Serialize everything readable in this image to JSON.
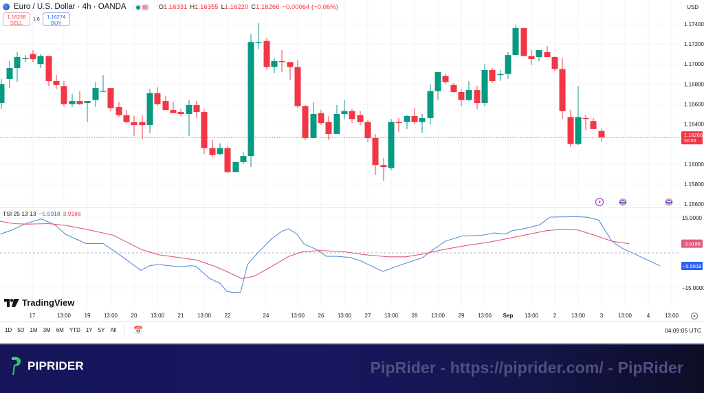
{
  "header": {
    "symbol_title": "Euro / U.S. Dollar · 4h · OANDA",
    "ohlc": {
      "open_label": "O",
      "open": "1.16331",
      "high_label": "H",
      "high": "1.16355",
      "low_label": "L",
      "low": "1.16220",
      "close_label": "C",
      "close": "1.16266",
      "change": "−0.00064 (−0.06%)"
    },
    "sell": {
      "price": "1.16258",
      "label": "SELL"
    },
    "spread": "1.6",
    "buy": {
      "price": "1.16274",
      "label": "BUY"
    },
    "currency": "USD"
  },
  "price_axis": {
    "labels": [
      "1.17400",
      "1.17200",
      "1.17000",
      "1.16800",
      "1.16600",
      "1.16400",
      "1.16000",
      "1.15800",
      "1.15600"
    ],
    "current_price": "1.16266",
    "countdown": "50:55",
    "current_color": "#f23645"
  },
  "tsi": {
    "name": "TSI 25 13 13",
    "tsi_value": "−5.5918",
    "signal_value": "3.9186",
    "axis_labels": [
      "15.0000",
      "−15.0000"
    ],
    "tsi_color": "#5b8fd6",
    "signal_color": "#e05a7a"
  },
  "time_axis": {
    "labels": [
      "17",
      "13:00",
      "19",
      "13:00",
      "20",
      "13:00",
      "21",
      "13:00",
      "22",
      "24",
      "13:00",
      "26",
      "13:00",
      "27",
      "13:00",
      "28",
      "13:00",
      "29",
      "13:00",
      "Sep",
      "13:00",
      "2",
      "13:00",
      "3",
      "13:00",
      "4",
      "13:00"
    ]
  },
  "range_bar": {
    "items": [
      "1D",
      "5D",
      "1M",
      "3M",
      "6M",
      "YTD",
      "1Y",
      "5Y",
      "All"
    ],
    "time": "04:09:05 UTC"
  },
  "branding": {
    "tradingview": "TradingView",
    "footer_brand": "PIPRIDER",
    "footer_watermark": "PipRider - https://piprider.com/ - PipRider"
  },
  "colors": {
    "up": "#089981",
    "down": "#f23645",
    "grid": "#f0f3fa"
  },
  "chart_data": [
    {
      "type": "candlestick",
      "title": "Euro / U.S. Dollar · 4h · OANDA",
      "xlabel": "",
      "ylabel": "USD",
      "ylim": [
        1.1556,
        1.1743
      ],
      "grid": true,
      "x_ticks": [
        "17",
        "13:00",
        "19",
        "13:00",
        "20",
        "13:00",
        "21",
        "13:00",
        "22",
        "24",
        "13:00",
        "26",
        "13:00",
        "27",
        "13:00",
        "28",
        "13:00",
        "29",
        "13:00",
        "Sep",
        "13:00",
        "2",
        "13:00",
        "3",
        "13:00",
        "4",
        "13:00"
      ],
      "y_ticks": [
        1.174,
        1.172,
        1.17,
        1.168,
        1.166,
        1.164,
        1.16,
        1.158,
        1.156
      ],
      "candles": [
        {
          "x": 2,
          "o": 1.1661,
          "h": 1.1685,
          "l": 1.1655,
          "c": 1.168
        },
        {
          "x": 14,
          "o": 1.1685,
          "h": 1.1703,
          "l": 1.1676,
          "c": 1.1696
        },
        {
          "x": 25,
          "o": 1.1696,
          "h": 1.1712,
          "l": 1.1682,
          "c": 1.1707
        },
        {
          "x": 37,
          "o": 1.1705,
          "h": 1.1709,
          "l": 1.1702,
          "c": 1.1706
        },
        {
          "x": 48,
          "o": 1.171,
          "h": 1.1714,
          "l": 1.1702,
          "c": 1.1705
        },
        {
          "x": 59,
          "o": 1.17,
          "h": 1.171,
          "l": 1.1696,
          "c": 1.1708
        },
        {
          "x": 71,
          "o": 1.1708,
          "h": 1.1708,
          "l": 1.1678,
          "c": 1.1683
        },
        {
          "x": 82,
          "o": 1.1683,
          "h": 1.1689,
          "l": 1.1675,
          "c": 1.1679
        },
        {
          "x": 93,
          "o": 1.1678,
          "h": 1.1683,
          "l": 1.1658,
          "c": 1.166
        },
        {
          "x": 105,
          "o": 1.166,
          "h": 1.167,
          "l": 1.1657,
          "c": 1.1663
        },
        {
          "x": 116,
          "o": 1.1663,
          "h": 1.1673,
          "l": 1.1659,
          "c": 1.166
        },
        {
          "x": 127,
          "o": 1.1661,
          "h": 1.1661,
          "l": 1.1642,
          "c": 1.1663
        },
        {
          "x": 139,
          "o": 1.1664,
          "h": 1.1682,
          "l": 1.1657,
          "c": 1.1676
        },
        {
          "x": 150,
          "o": 1.1673,
          "h": 1.1689,
          "l": 1.1673,
          "c": 1.1673
        },
        {
          "x": 161,
          "o": 1.1676,
          "h": 1.1676,
          "l": 1.1653,
          "c": 1.1656
        },
        {
          "x": 173,
          "o": 1.1657,
          "h": 1.1662,
          "l": 1.1647,
          "c": 1.1649
        },
        {
          "x": 184,
          "o": 1.1649,
          "h": 1.1654,
          "l": 1.1641,
          "c": 1.1642
        },
        {
          "x": 195,
          "o": 1.1642,
          "h": 1.1648,
          "l": 1.1628,
          "c": 1.1639
        },
        {
          "x": 207,
          "o": 1.1642,
          "h": 1.1649,
          "l": 1.1625,
          "c": 1.1639
        },
        {
          "x": 218,
          "o": 1.1639,
          "h": 1.1675,
          "l": 1.1631,
          "c": 1.1671
        },
        {
          "x": 229,
          "o": 1.1671,
          "h": 1.1677,
          "l": 1.1658,
          "c": 1.166
        },
        {
          "x": 241,
          "o": 1.1663,
          "h": 1.1668,
          "l": 1.1654,
          "c": 1.1654
        },
        {
          "x": 252,
          "o": 1.1654,
          "h": 1.1662,
          "l": 1.1651,
          "c": 1.1651
        },
        {
          "x": 263,
          "o": 1.1652,
          "h": 1.1655,
          "l": 1.1648,
          "c": 1.165
        },
        {
          "x": 275,
          "o": 1.165,
          "h": 1.1664,
          "l": 1.1628,
          "c": 1.1659
        },
        {
          "x": 286,
          "o": 1.1659,
          "h": 1.1663,
          "l": 1.1646,
          "c": 1.1652
        },
        {
          "x": 297,
          "o": 1.1652,
          "h": 1.1655,
          "l": 1.161,
          "c": 1.1616
        },
        {
          "x": 309,
          "o": 1.1616,
          "h": 1.1624,
          "l": 1.1607,
          "c": 1.1609
        },
        {
          "x": 320,
          "o": 1.161,
          "h": 1.1621,
          "l": 1.1609,
          "c": 1.1616
        },
        {
          "x": 331,
          "o": 1.1616,
          "h": 1.1618,
          "l": 1.1591,
          "c": 1.1592
        },
        {
          "x": 343,
          "o": 1.1592,
          "h": 1.1602,
          "l": 1.1592,
          "c": 1.1602
        },
        {
          "x": 354,
          "o": 1.1602,
          "h": 1.1612,
          "l": 1.16,
          "c": 1.1608
        },
        {
          "x": 365,
          "o": 1.1608,
          "h": 1.173,
          "l": 1.1597,
          "c": 1.1722
        },
        {
          "x": 376,
          "o": 1.1722,
          "h": 1.1741,
          "l": 1.1715,
          "c": 1.1722
        },
        {
          "x": 388,
          "o": 1.1723,
          "h": 1.1726,
          "l": 1.1695,
          "c": 1.1697
        },
        {
          "x": 399,
          "o": 1.1697,
          "h": 1.1706,
          "l": 1.1691,
          "c": 1.1703
        },
        {
          "x": 410,
          "o": 1.1703,
          "h": 1.1714,
          "l": 1.1692,
          "c": 1.1702
        },
        {
          "x": 422,
          "o": 1.1702,
          "h": 1.1702,
          "l": 1.1684,
          "c": 1.1697
        },
        {
          "x": 433,
          "o": 1.1697,
          "h": 1.1704,
          "l": 1.1656,
          "c": 1.1658
        },
        {
          "x": 444,
          "o": 1.1658,
          "h": 1.1659,
          "l": 1.1624,
          "c": 1.1626
        },
        {
          "x": 456,
          "o": 1.1626,
          "h": 1.1662,
          "l": 1.1627,
          "c": 1.165
        },
        {
          "x": 467,
          "o": 1.1651,
          "h": 1.1654,
          "l": 1.1639,
          "c": 1.1641
        },
        {
          "x": 478,
          "o": 1.1642,
          "h": 1.1648,
          "l": 1.1624,
          "c": 1.163
        },
        {
          "x": 490,
          "o": 1.163,
          "h": 1.1659,
          "l": 1.163,
          "c": 1.165
        },
        {
          "x": 501,
          "o": 1.165,
          "h": 1.1664,
          "l": 1.1645,
          "c": 1.1653
        },
        {
          "x": 512,
          "o": 1.1653,
          "h": 1.1655,
          "l": 1.1641,
          "c": 1.1645
        },
        {
          "x": 524,
          "o": 1.1649,
          "h": 1.1653,
          "l": 1.1639,
          "c": 1.1642
        },
        {
          "x": 535,
          "o": 1.1642,
          "h": 1.1644,
          "l": 1.1622,
          "c": 1.1626
        },
        {
          "x": 546,
          "o": 1.1626,
          "h": 1.163,
          "l": 1.1589,
          "c": 1.1599
        },
        {
          "x": 558,
          "o": 1.1599,
          "h": 1.1606,
          "l": 1.1583,
          "c": 1.1597
        },
        {
          "x": 569,
          "o": 1.1596,
          "h": 1.1645,
          "l": 1.1594,
          "c": 1.1642
        },
        {
          "x": 580,
          "o": 1.1642,
          "h": 1.1646,
          "l": 1.1632,
          "c": 1.1641
        },
        {
          "x": 592,
          "o": 1.1642,
          "h": 1.1649,
          "l": 1.1635,
          "c": 1.1648
        },
        {
          "x": 603,
          "o": 1.1648,
          "h": 1.1656,
          "l": 1.164,
          "c": 1.1642
        },
        {
          "x": 614,
          "o": 1.1642,
          "h": 1.165,
          "l": 1.1631,
          "c": 1.1646
        },
        {
          "x": 626,
          "o": 1.1646,
          "h": 1.168,
          "l": 1.164,
          "c": 1.1673
        },
        {
          "x": 637,
          "o": 1.1673,
          "h": 1.1688,
          "l": 1.1664,
          "c": 1.1692
        },
        {
          "x": 648,
          "o": 1.1688,
          "h": 1.169,
          "l": 1.168,
          "c": 1.1682
        },
        {
          "x": 660,
          "o": 1.1679,
          "h": 1.1681,
          "l": 1.1671,
          "c": 1.1672
        },
        {
          "x": 671,
          "o": 1.1672,
          "h": 1.1675,
          "l": 1.1658,
          "c": 1.1664
        },
        {
          "x": 682,
          "o": 1.1664,
          "h": 1.1683,
          "l": 1.1663,
          "c": 1.1674
        },
        {
          "x": 694,
          "o": 1.1674,
          "h": 1.1678,
          "l": 1.1655,
          "c": 1.1661
        },
        {
          "x": 705,
          "o": 1.1661,
          "h": 1.17,
          "l": 1.1658,
          "c": 1.1694
        },
        {
          "x": 716,
          "o": 1.1694,
          "h": 1.1696,
          "l": 1.1681,
          "c": 1.1683
        },
        {
          "x": 728,
          "o": 1.1689,
          "h": 1.1694,
          "l": 1.1683,
          "c": 1.169
        },
        {
          "x": 739,
          "o": 1.169,
          "h": 1.1712,
          "l": 1.1685,
          "c": 1.1709
        },
        {
          "x": 750,
          "o": 1.1709,
          "h": 1.1739,
          "l": 1.1709,
          "c": 1.1736
        },
        {
          "x": 762,
          "o": 1.1736,
          "h": 1.1736,
          "l": 1.1708,
          "c": 1.1708
        },
        {
          "x": 773,
          "o": 1.1708,
          "h": 1.1714,
          "l": 1.1699,
          "c": 1.1705
        },
        {
          "x": 784,
          "o": 1.1707,
          "h": 1.1712,
          "l": 1.1703,
          "c": 1.1714
        },
        {
          "x": 796,
          "o": 1.1712,
          "h": 1.1718,
          "l": 1.1707,
          "c": 1.1707
        },
        {
          "x": 807,
          "o": 1.1707,
          "h": 1.1708,
          "l": 1.1693,
          "c": 1.1695
        },
        {
          "x": 818,
          "o": 1.1695,
          "h": 1.1706,
          "l": 1.1645,
          "c": 1.1653
        },
        {
          "x": 830,
          "o": 1.1647,
          "h": 1.1654,
          "l": 1.1617,
          "c": 1.162
        },
        {
          "x": 841,
          "o": 1.162,
          "h": 1.1678,
          "l": 1.1619,
          "c": 1.1647
        },
        {
          "x": 852,
          "o": 1.1646,
          "h": 1.1649,
          "l": 1.1634,
          "c": 1.1645
        },
        {
          "x": 863,
          "o": 1.1643,
          "h": 1.1646,
          "l": 1.1635,
          "c": 1.1635
        },
        {
          "x": 875,
          "o": 1.16331,
          "h": 1.16355,
          "l": 1.1622,
          "c": 1.16266
        }
      ]
    },
    {
      "type": "line",
      "title": "TSI 25 13 13",
      "ylim": [
        -19,
        19
      ],
      "y_ticks": [
        15,
        -15
      ],
      "zero_line": true,
      "series": [
        {
          "name": "TSI",
          "color": "#5b8fd6",
          "last": -5.5918,
          "points": [
            [
              0,
              8
            ],
            [
              15,
              9.5
            ],
            [
              40,
              12.8
            ],
            [
              60,
              14.5
            ],
            [
              80,
              12
            ],
            [
              95,
              8
            ],
            [
              125,
              4
            ],
            [
              150,
              4
            ],
            [
              170,
              0
            ],
            [
              205,
              -7.5
            ],
            [
              218,
              -5.5
            ],
            [
              230,
              -5
            ],
            [
              262,
              -6
            ],
            [
              278,
              -5.5
            ],
            [
              285,
              -5.8
            ],
            [
              305,
              -11
            ],
            [
              320,
              -13
            ],
            [
              330,
              -16.5
            ],
            [
              340,
              -17
            ],
            [
              350,
              -16.8
            ],
            [
              360,
              -5
            ],
            [
              375,
              0
            ],
            [
              395,
              6
            ],
            [
              410,
              9.2
            ],
            [
              420,
              10.3
            ],
            [
              432,
              8
            ],
            [
              442,
              3.8
            ],
            [
              460,
              1.5
            ],
            [
              475,
              -1.5
            ],
            [
              490,
              -1.5
            ],
            [
              510,
              -2
            ],
            [
              525,
              -3.5
            ],
            [
              557,
              -8
            ],
            [
              575,
              -6
            ],
            [
              595,
              -4
            ],
            [
              615,
              -2
            ],
            [
              632,
              1.8
            ],
            [
              648,
              5
            ],
            [
              672,
              7.2
            ],
            [
              700,
              7.5
            ],
            [
              720,
              8.5
            ],
            [
              735,
              8
            ],
            [
              745,
              9.5
            ],
            [
              765,
              10.5
            ],
            [
              785,
              12
            ],
            [
              800,
              15.3
            ],
            [
              820,
              15.4
            ],
            [
              840,
              15.5
            ],
            [
              855,
              15.2
            ],
            [
              871,
              14
            ],
            [
              890,
              5
            ],
            [
              905,
              2
            ],
            [
              960,
              -5.6
            ]
          ]
        },
        {
          "name": "Signal",
          "color": "#e05a7a",
          "last": 3.9186,
          "points": [
            [
              0,
              13.5
            ],
            [
              20,
              12.5
            ],
            [
              40,
              12.3
            ],
            [
              70,
              12.5
            ],
            [
              95,
              11.8
            ],
            [
              130,
              9.8
            ],
            [
              165,
              7.5
            ],
            [
              205,
              1.5
            ],
            [
              230,
              -0.8
            ],
            [
              260,
              -2
            ],
            [
              285,
              -3
            ],
            [
              310,
              -5.5
            ],
            [
              330,
              -8
            ],
            [
              352,
              -11
            ],
            [
              370,
              -10
            ],
            [
              400,
              -5
            ],
            [
              420,
              -1.5
            ],
            [
              440,
              0.4
            ],
            [
              465,
              1
            ],
            [
              500,
              0.5
            ],
            [
              530,
              -0.8
            ],
            [
              565,
              -1.7
            ],
            [
              590,
              -1.7
            ],
            [
              615,
              -0.5
            ],
            [
              645,
              1.4
            ],
            [
              680,
              3.2
            ],
            [
              710,
              4.5
            ],
            [
              740,
              6.2
            ],
            [
              770,
              8
            ],
            [
              795,
              9.5
            ],
            [
              815,
              10
            ],
            [
              840,
              9.8
            ],
            [
              860,
              8
            ],
            [
              890,
              5
            ],
            [
              915,
              3.9
            ]
          ]
        }
      ]
    }
  ]
}
